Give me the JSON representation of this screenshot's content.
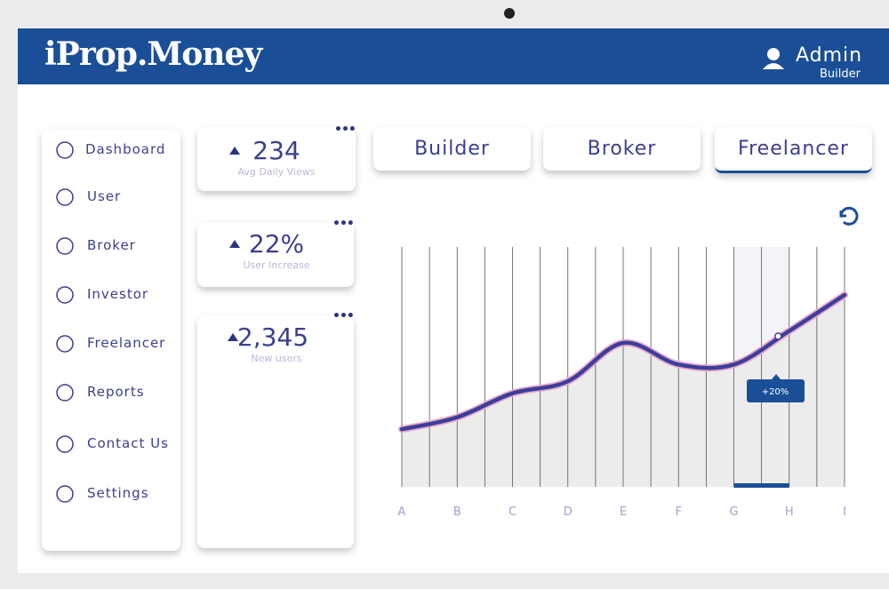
{
  "header": {
    "logo": "iProp.Money",
    "user_name": "Admin",
    "user_role": "Builder"
  },
  "sidebar": {
    "items": [
      "Dashboard",
      "User",
      "Broker",
      "Investor",
      "Freelancer",
      "Reports",
      "Contact Us",
      "Settings"
    ]
  },
  "stats": [
    {
      "value": "234",
      "label": "Avg Daily Views"
    },
    {
      "value": "22%",
      "label": "User Increase"
    },
    {
      "value": "2,345",
      "label": "New users"
    }
  ],
  "tabs": [
    "Builder",
    "Broker",
    "Freelancer"
  ],
  "chart_data": {
    "type": "line",
    "categories": [
      "A",
      "B",
      "C",
      "D",
      "E",
      "F",
      "G",
      "H",
      "I"
    ],
    "values": [
      24,
      29,
      39,
      44,
      60,
      51,
      51,
      65,
      80
    ],
    "color": "#3b3f9c",
    "annotation": "+20%"
  }
}
